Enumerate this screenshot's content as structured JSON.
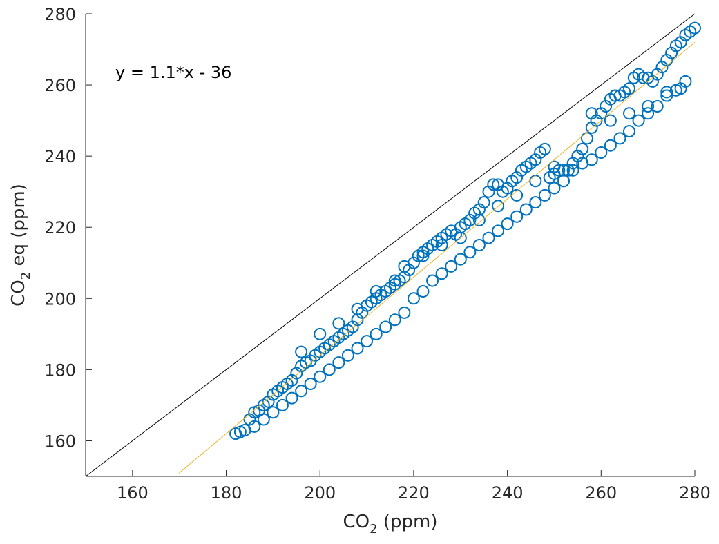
{
  "chart_data": {
    "type": "scatter",
    "xlabel": {
      "main": "CO",
      "sub": "2",
      "rest": " (ppm)"
    },
    "ylabel": {
      "main": "CO",
      "sub": "2",
      "rest": " eq (ppm)"
    },
    "xlim": [
      150,
      280
    ],
    "ylim": [
      150,
      280
    ],
    "xticks": [
      160,
      180,
      200,
      220,
      240,
      260,
      280
    ],
    "yticks": [
      160,
      180,
      200,
      220,
      240,
      260,
      280
    ],
    "grid": false,
    "annotation": "y = 1.1*x - 36",
    "reference_line": {
      "name": "1:1",
      "slope": 1,
      "intercept": 0,
      "color": "#000000"
    },
    "fit_line": {
      "slope": 1.1,
      "intercept": -36,
      "x_range": [
        169.9,
        280
      ],
      "color": "#EDB120"
    },
    "marker_color": "#0072BD",
    "series": [
      {
        "values": [
          [
            182,
            162
          ],
          [
            183,
            162.5
          ],
          [
            184,
            163
          ],
          [
            185,
            166
          ],
          [
            186,
            168
          ],
          [
            187,
            168.5
          ],
          [
            188,
            170
          ],
          [
            189,
            171
          ],
          [
            190,
            173
          ],
          [
            191,
            174
          ],
          [
            192,
            175
          ],
          [
            193,
            176
          ],
          [
            194,
            177
          ],
          [
            195,
            179
          ],
          [
            196,
            181
          ],
          [
            197,
            182
          ],
          [
            198,
            182.5
          ],
          [
            199,
            184
          ],
          [
            200,
            185
          ],
          [
            201,
            186
          ],
          [
            202,
            187
          ],
          [
            203,
            188
          ],
          [
            204,
            189
          ],
          [
            205,
            190
          ],
          [
            206,
            191
          ],
          [
            207,
            192
          ],
          [
            208,
            194
          ],
          [
            209,
            196
          ],
          [
            210,
            198
          ],
          [
            211,
            199
          ],
          [
            212,
            200
          ],
          [
            213,
            201
          ],
          [
            214,
            202
          ],
          [
            215,
            203
          ],
          [
            216,
            204
          ],
          [
            217,
            205
          ],
          [
            218,
            206
          ],
          [
            219,
            208
          ],
          [
            220,
            210
          ],
          [
            221,
            212
          ],
          [
            222,
            213
          ],
          [
            223,
            214
          ],
          [
            224,
            215
          ],
          [
            225,
            216
          ],
          [
            226,
            217
          ],
          [
            227,
            218
          ],
          [
            228,
            219
          ],
          [
            229,
            218
          ],
          [
            230,
            220
          ],
          [
            231,
            221
          ],
          [
            232,
            222
          ],
          [
            233,
            224
          ],
          [
            234,
            225
          ],
          [
            235,
            227
          ],
          [
            236,
            230
          ],
          [
            237,
            232
          ],
          [
            238,
            232
          ],
          [
            239,
            230
          ],
          [
            240,
            231
          ],
          [
            241,
            233
          ],
          [
            242,
            234
          ],
          [
            243,
            236
          ],
          [
            244,
            237
          ],
          [
            245,
            238
          ],
          [
            246,
            239
          ],
          [
            247,
            241
          ],
          [
            248,
            242
          ],
          [
            249,
            234
          ],
          [
            250,
            235
          ],
          [
            251,
            236
          ],
          [
            252,
            236
          ],
          [
            253,
            236
          ],
          [
            254,
            238
          ],
          [
            255,
            240
          ],
          [
            256,
            242
          ],
          [
            257,
            245
          ],
          [
            258,
            248
          ],
          [
            259,
            250
          ],
          [
            260,
            252
          ],
          [
            261,
            254
          ],
          [
            262,
            256
          ],
          [
            263,
            257
          ],
          [
            264,
            257
          ],
          [
            265,
            258
          ],
          [
            266,
            259
          ],
          [
            267,
            262
          ],
          [
            268,
            263
          ],
          [
            269,
            262
          ],
          [
            270,
            262
          ],
          [
            271,
            261
          ],
          [
            272,
            263
          ],
          [
            273,
            265
          ],
          [
            274,
            267
          ],
          [
            275,
            269
          ],
          [
            276,
            271
          ],
          [
            277,
            272
          ],
          [
            278,
            274
          ],
          [
            279,
            275
          ],
          [
            280,
            276
          ],
          [
            186,
            164
          ],
          [
            188,
            166
          ],
          [
            190,
            168
          ],
          [
            192,
            170
          ],
          [
            194,
            172
          ],
          [
            196,
            174
          ],
          [
            198,
            176
          ],
          [
            200,
            178
          ],
          [
            202,
            180
          ],
          [
            204,
            182
          ],
          [
            206,
            184
          ],
          [
            208,
            186
          ],
          [
            210,
            188
          ],
          [
            212,
            190
          ],
          [
            214,
            192
          ],
          [
            216,
            194
          ],
          [
            218,
            196
          ],
          [
            220,
            200
          ],
          [
            222,
            202
          ],
          [
            224,
            205
          ],
          [
            226,
            207
          ],
          [
            228,
            209
          ],
          [
            230,
            211
          ],
          [
            232,
            213
          ],
          [
            234,
            215
          ],
          [
            236,
            217
          ],
          [
            238,
            219
          ],
          [
            240,
            221
          ],
          [
            242,
            223
          ],
          [
            244,
            225
          ],
          [
            246,
            227
          ],
          [
            248,
            229
          ],
          [
            250,
            231
          ],
          [
            252,
            233
          ],
          [
            254,
            236
          ],
          [
            256,
            238
          ],
          [
            258,
            239
          ],
          [
            260,
            241
          ],
          [
            262,
            243
          ],
          [
            264,
            245
          ],
          [
            266,
            247
          ],
          [
            268,
            250
          ],
          [
            270,
            252
          ],
          [
            272,
            254
          ],
          [
            274,
            258
          ],
          [
            276,
            258.5
          ],
          [
            278,
            261
          ],
          [
            196,
            185
          ],
          [
            200,
            190
          ],
          [
            204,
            193
          ],
          [
            208,
            197
          ],
          [
            212,
            202
          ],
          [
            216,
            205
          ],
          [
            218,
            209
          ],
          [
            222,
            212
          ],
          [
            226,
            215
          ],
          [
            230,
            217
          ],
          [
            234,
            222
          ],
          [
            238,
            226
          ],
          [
            242,
            229
          ],
          [
            246,
            233
          ],
          [
            250,
            237
          ],
          [
            258,
            252
          ],
          [
            262,
            250
          ],
          [
            266,
            252
          ],
          [
            270,
            254
          ],
          [
            274,
            257
          ],
          [
            277,
            259
          ]
        ]
      }
    ]
  }
}
